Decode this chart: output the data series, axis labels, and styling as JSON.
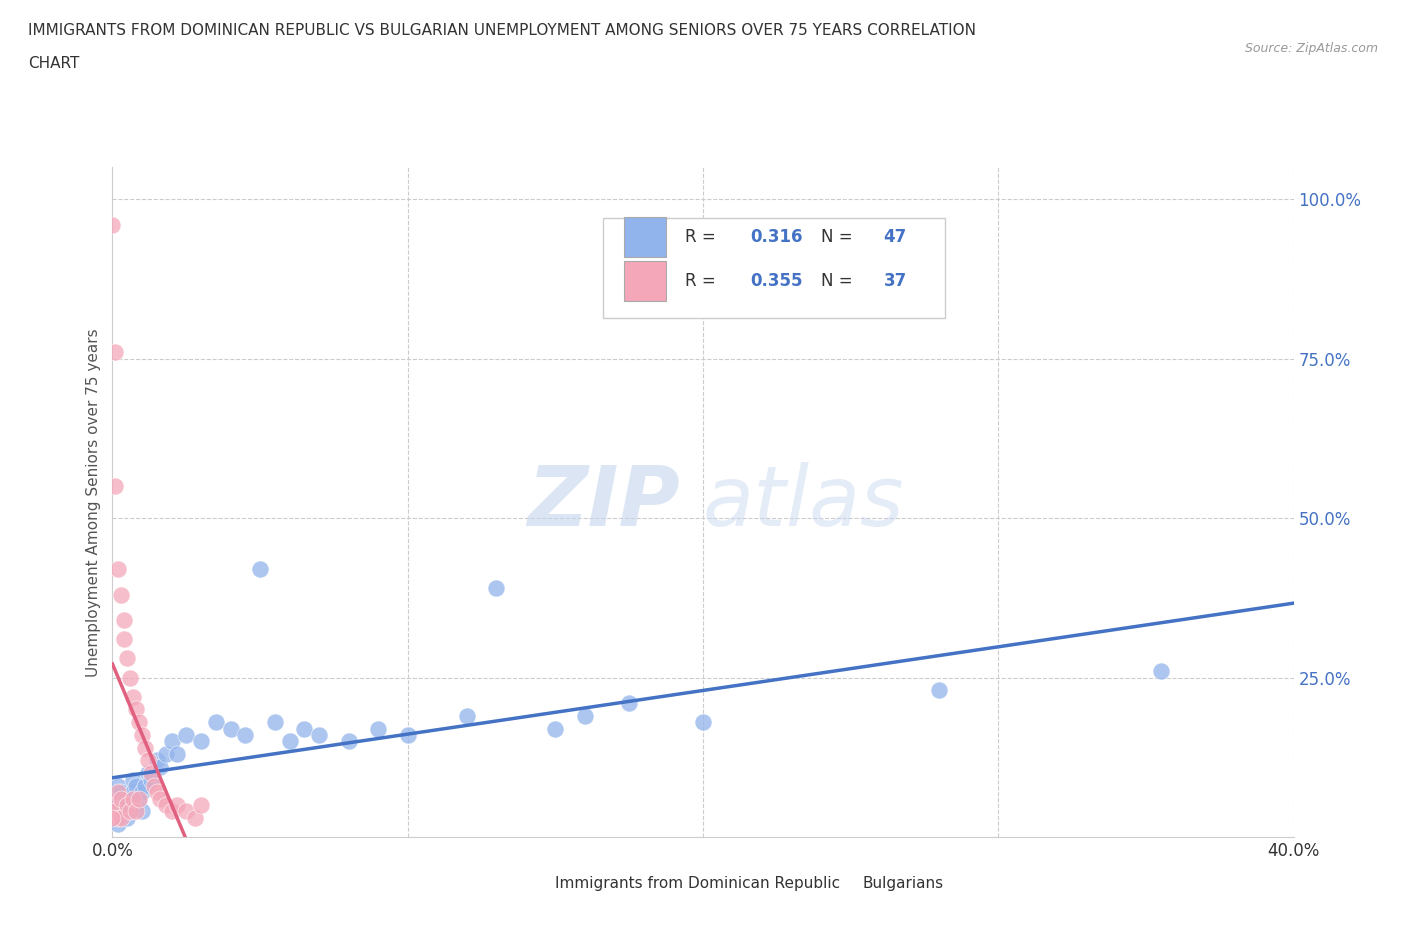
{
  "title_line1": "IMMIGRANTS FROM DOMINICAN REPUBLIC VS BULGARIAN UNEMPLOYMENT AMONG SENIORS OVER 75 YEARS CORRELATION",
  "title_line2": "CHART",
  "source": "Source: ZipAtlas.com",
  "ylabel": "Unemployment Among Seniors over 75 years",
  "xlim": [
    0.0,
    0.4
  ],
  "ylim": [
    0.0,
    1.05
  ],
  "r_blue": 0.316,
  "n_blue": 47,
  "r_pink": 0.355,
  "n_pink": 37,
  "blue_color": "#92B4EC",
  "pink_color": "#F4A7B9",
  "blue_line_color": "#4472C4",
  "pink_line_color": "#E06080",
  "watermark_zip": "ZIP",
  "watermark_atlas": "atlas",
  "background_color": "#FFFFFF",
  "blue_scatter_x": [
    0.0,
    0.001,
    0.001,
    0.002,
    0.002,
    0.003,
    0.003,
    0.004,
    0.005,
    0.005,
    0.006,
    0.007,
    0.007,
    0.008,
    0.008,
    0.009,
    0.01,
    0.01,
    0.011,
    0.012,
    0.013,
    0.015,
    0.016,
    0.018,
    0.02,
    0.022,
    0.025,
    0.03,
    0.035,
    0.04,
    0.045,
    0.05,
    0.055,
    0.06,
    0.065,
    0.07,
    0.08,
    0.09,
    0.1,
    0.12,
    0.13,
    0.15,
    0.16,
    0.175,
    0.2,
    0.28,
    0.355
  ],
  "blue_scatter_y": [
    0.05,
    0.03,
    0.06,
    0.02,
    0.08,
    0.04,
    0.07,
    0.05,
    0.03,
    0.06,
    0.04,
    0.07,
    0.09,
    0.05,
    0.08,
    0.06,
    0.04,
    0.07,
    0.08,
    0.1,
    0.09,
    0.12,
    0.11,
    0.13,
    0.15,
    0.13,
    0.16,
    0.15,
    0.18,
    0.17,
    0.16,
    0.42,
    0.18,
    0.15,
    0.17,
    0.16,
    0.15,
    0.17,
    0.16,
    0.19,
    0.39,
    0.17,
    0.19,
    0.21,
    0.18,
    0.23,
    0.26
  ],
  "pink_scatter_x": [
    0.0,
    0.0,
    0.001,
    0.001,
    0.001,
    0.002,
    0.002,
    0.002,
    0.003,
    0.003,
    0.003,
    0.004,
    0.004,
    0.005,
    0.005,
    0.006,
    0.006,
    0.007,
    0.007,
    0.008,
    0.008,
    0.009,
    0.009,
    0.01,
    0.011,
    0.012,
    0.013,
    0.014,
    0.015,
    0.016,
    0.018,
    0.02,
    0.022,
    0.025,
    0.028,
    0.03,
    0.0
  ],
  "pink_scatter_y": [
    0.96,
    0.05,
    0.76,
    0.55,
    0.04,
    0.42,
    0.07,
    0.03,
    0.38,
    0.06,
    0.03,
    0.34,
    0.31,
    0.28,
    0.05,
    0.25,
    0.04,
    0.22,
    0.06,
    0.2,
    0.04,
    0.18,
    0.06,
    0.16,
    0.14,
    0.12,
    0.1,
    0.08,
    0.07,
    0.06,
    0.05,
    0.04,
    0.05,
    0.04,
    0.03,
    0.05,
    0.03
  ]
}
